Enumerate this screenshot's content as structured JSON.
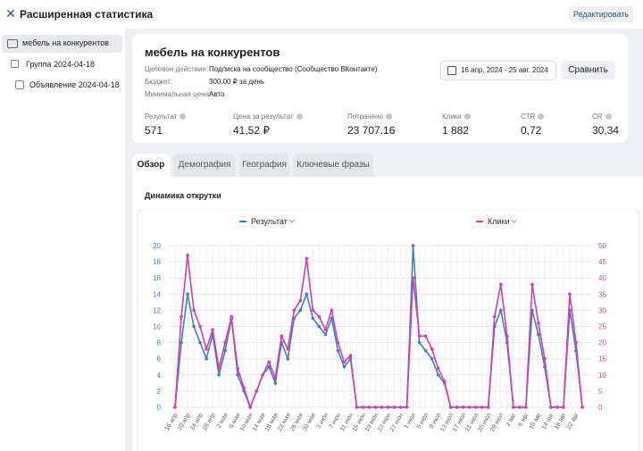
{
  "header": {
    "title": "Расширенная статистика",
    "edit_button": "Редактировать"
  },
  "sidebar": [
    "мебель на конкурентов",
    "Группа 2024-04-18",
    "Объявление 2024-04-18"
  ],
  "campaign": {
    "title": "мебель на конкурентов",
    "fields": [
      {
        "label": "Целевое действие:",
        "value": "Подписка на сообщество (Сообщество ВКонтакте)"
      },
      {
        "label": "Бюджет:",
        "value": "300,00 ₽ за день"
      },
      {
        "label": "Минимальная цена:",
        "value": "Авто"
      }
    ],
    "date_range": "16 апр. 2024 - 25 авг. 2024",
    "compare_button": "Сравнить",
    "metrics": [
      {
        "label": "Результат",
        "value": "571"
      },
      {
        "label": "Цена за результат",
        "value": "41,52 ₽"
      },
      {
        "label": "Потрачено",
        "value": "23 707.16"
      },
      {
        "label": "Клики",
        "value": "1 882"
      },
      {
        "label": "CTR",
        "value": "0,72"
      },
      {
        "label": "CR",
        "value": "30,34"
      }
    ]
  },
  "tabs": [
    "Обзор",
    "Демография",
    "География",
    "Ключевые фразы"
  ],
  "chart_data": {
    "type": "line",
    "title": "Динамика открутки",
    "categories": [
      "16 апр",
      null,
      "20 апр",
      null,
      "24 апр",
      null,
      "28 апр",
      null,
      "2 мая",
      null,
      "6 мая",
      null,
      "10 мая",
      null,
      "14 мая",
      null,
      "18 мая",
      null,
      "22 мая",
      null,
      "26 мая",
      null,
      "30 мая",
      null,
      "3 июн",
      null,
      "7 июн",
      null,
      "11 июн",
      null,
      "15 июн",
      null,
      "19 июн",
      null,
      "23 июн",
      null,
      "27 июн",
      null,
      "1 июл",
      null,
      "5 июл",
      null,
      "9 июл",
      null,
      "13 июл",
      null,
      "17 июл",
      null,
      "21 июл",
      null,
      "25 июл",
      null,
      "29 июл",
      null,
      "2 авг",
      null,
      "6 авг",
      null,
      "10 авг",
      null,
      "14 авг",
      null,
      "18 авг",
      null,
      "22 авг",
      null
    ],
    "series": [
      {
        "name": "Результат",
        "color": "#3d7fc9",
        "values": [
          0,
          8,
          14,
          10,
          8,
          6,
          9,
          4,
          7,
          11,
          4,
          2,
          0,
          2,
          4,
          5,
          3,
          8,
          6,
          11,
          12,
          14,
          11,
          10,
          9,
          11,
          7,
          5,
          6,
          0,
          0,
          0,
          0,
          0,
          0,
          0,
          0,
          0,
          20,
          8,
          7,
          6,
          4,
          3,
          0,
          0,
          0,
          0,
          0,
          0,
          0,
          10,
          12,
          8,
          0,
          0,
          0,
          12,
          9,
          5,
          0,
          0,
          0,
          12,
          7,
          0
        ]
      },
      {
        "name": "Клики",
        "color": "#d63fb0",
        "axis": "y2",
        "values": [
          0,
          28,
          47,
          30,
          25,
          18,
          24,
          12,
          20,
          28,
          12,
          6,
          0,
          5,
          10,
          14,
          9,
          22,
          18,
          30,
          33,
          46,
          30,
          28,
          24,
          30,
          20,
          14,
          16,
          0,
          0,
          0,
          0,
          0,
          0,
          0,
          0,
          0,
          40,
          22,
          22,
          18,
          12,
          8,
          0,
          0,
          0,
          0,
          0,
          0,
          0,
          28,
          38,
          22,
          0,
          0,
          0,
          38,
          26,
          15,
          0,
          0,
          0,
          35,
          20,
          0
        ]
      }
    ],
    "ylim": [
      0,
      20
    ],
    "yticks": [
      0,
      2,
      4,
      6,
      8,
      10,
      12,
      14,
      16,
      18,
      20
    ],
    "y2lim": [
      0,
      50
    ],
    "y2ticks": [
      0,
      5,
      10,
      15,
      20,
      25,
      30,
      35,
      40,
      45,
      50
    ],
    "grid": true
  }
}
